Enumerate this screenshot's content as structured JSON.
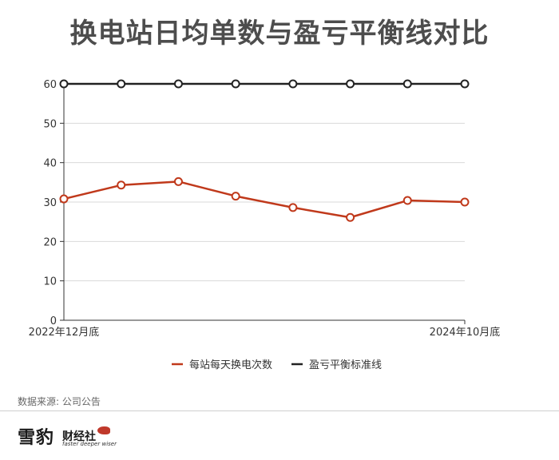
{
  "title": "换电站日均单数与盈亏平衡线对比",
  "source": "数据来源: 公司公告",
  "logo": {
    "cn_big": "雪豹",
    "cn_small": "财经社",
    "en": "faster deeper wiser"
  },
  "colors": {
    "series1": "#c0391b",
    "series2": "#222222",
    "axis": "#333333",
    "grid": "#d9d9d9"
  },
  "chart_data": {
    "type": "line",
    "categories": [
      "2022年12月底",
      "",
      "",
      "",
      "",
      "",
      "",
      "2024年10月底"
    ],
    "series": [
      {
        "name": "每站每天换电次数",
        "values": [
          30.8,
          34.3,
          35.2,
          31.5,
          28.6,
          26.1,
          30.4,
          30.0
        ],
        "color": "#c0391b"
      },
      {
        "name": "盈亏平衡标准线",
        "values": [
          60,
          60,
          60,
          60,
          60,
          60,
          60,
          60
        ],
        "color": "#222222"
      }
    ],
    "yticks": [
      0,
      10,
      20,
      30,
      40,
      50,
      60
    ],
    "ylim": [
      0,
      60
    ],
    "grid": true,
    "legend": "bottom"
  }
}
